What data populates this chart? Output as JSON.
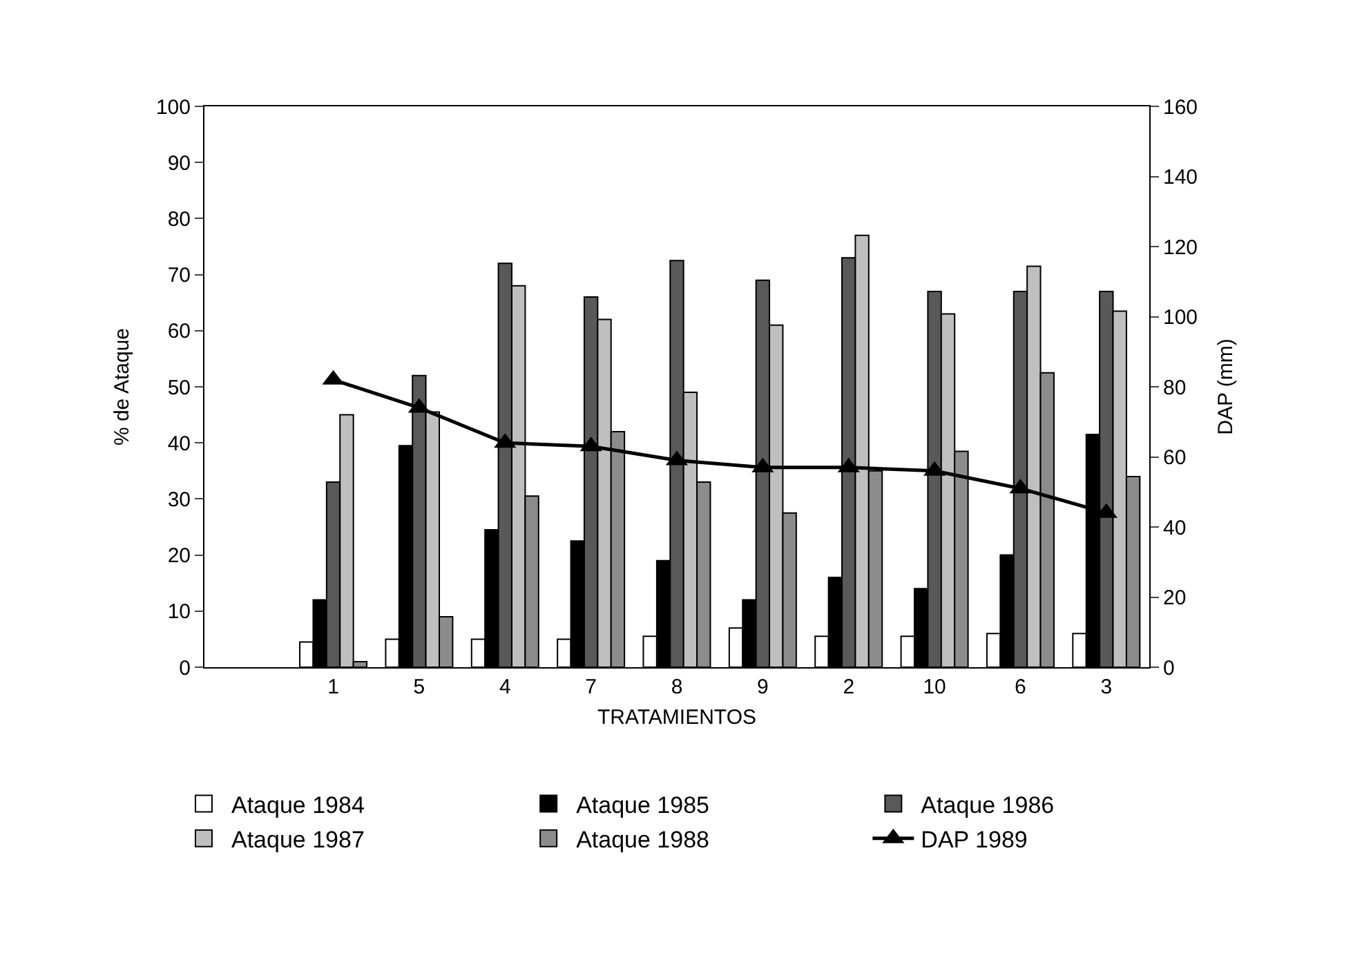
{
  "chart_data": {
    "type": "bar",
    "xlabel": "TRATAMIENTOS",
    "ylabel": "% de Ataque",
    "y2label": "DAP (mm)",
    "categories": [
      null,
      "1",
      "5",
      "4",
      "7",
      "8",
      "9",
      "2",
      "10",
      "6",
      "3"
    ],
    "series": [
      {
        "name": "Ataque 1984",
        "color": "#ffffff",
        "values": [
          null,
          4.5,
          5,
          5,
          5,
          5.5,
          7,
          5.5,
          5.5,
          6,
          6
        ]
      },
      {
        "name": "Ataque 1985",
        "color": "#000000",
        "values": [
          null,
          12,
          39.5,
          24.5,
          22.5,
          19,
          12,
          16,
          14,
          20,
          41.5
        ]
      },
      {
        "name": "Ataque 1986",
        "color": "#595959",
        "values": [
          null,
          33,
          52,
          72,
          66,
          72.5,
          69,
          73,
          67,
          67,
          67
        ]
      },
      {
        "name": "Ataque 1987",
        "color": "#bfbfbf",
        "values": [
          null,
          45,
          45.5,
          68,
          62,
          49,
          61,
          77,
          63,
          71.5,
          63.5
        ]
      },
      {
        "name": "Ataque 1988",
        "color": "#8c8c8c",
        "values": [
          null,
          1,
          9,
          30.5,
          42,
          33,
          27.5,
          35,
          38.5,
          52.5,
          34
        ]
      },
      {
        "name": "DAP 1989",
        "color": "#000000",
        "type": "line",
        "axis": "y2",
        "marker": "triangle",
        "values": [
          null,
          82,
          74,
          64,
          63,
          59,
          57,
          57,
          56,
          51,
          44
        ]
      }
    ],
    "ylim": [
      0,
      100
    ],
    "yticks": [
      0,
      10,
      20,
      30,
      40,
      50,
      60,
      70,
      80,
      90,
      100
    ],
    "y2lim": [
      0,
      160
    ],
    "y2ticks": [
      0,
      20,
      40,
      60,
      80,
      100,
      120,
      140,
      160
    ],
    "legend": "bottom"
  }
}
